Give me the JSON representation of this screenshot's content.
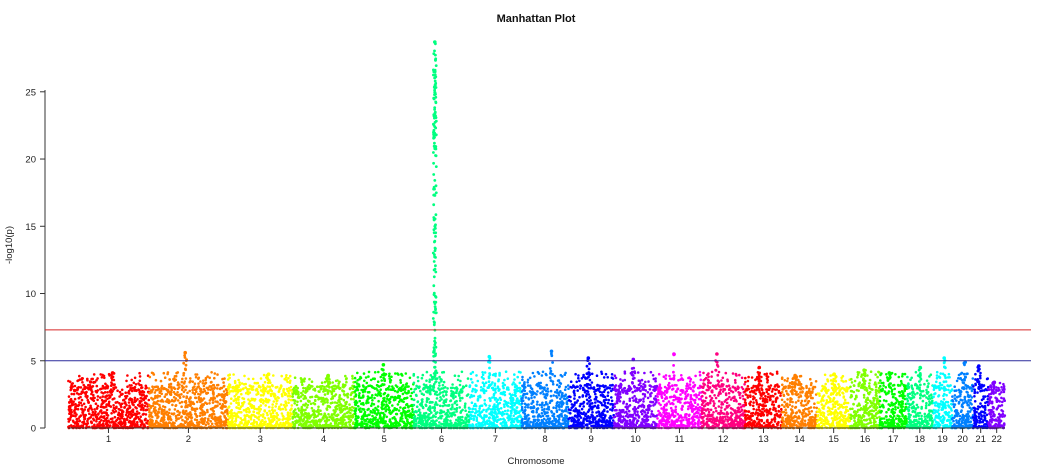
{
  "chart_data": {
    "type": "scatter",
    "title": "Manhattan Plot",
    "xlabel": "Chromosome",
    "ylabel": "-log10(p)",
    "ylim": [
      0,
      29
    ],
    "y_ticks": [
      0,
      5,
      10,
      15,
      20,
      25
    ],
    "grid": false,
    "legend": "none",
    "thresholds": [
      {
        "value": 7.3,
        "color": "#d62728"
      },
      {
        "value": 5.0,
        "color": "#2c2c9c"
      }
    ],
    "chromosomes": [
      {
        "label": "1",
        "color": "#ff0000",
        "peak": 4.1
      },
      {
        "label": "2",
        "color": "#ff7f00",
        "peak": 5.6
      },
      {
        "label": "3",
        "color": "#ffff00",
        "peak": 4.0
      },
      {
        "label": "4",
        "color": "#80ff00",
        "peak": 3.9
      },
      {
        "label": "5",
        "color": "#00ff00",
        "peak": 4.7
      },
      {
        "label": "6",
        "color": "#00ff80",
        "peak": 28.7
      },
      {
        "label": "7",
        "color": "#00ffff",
        "peak": 5.3
      },
      {
        "label": "8",
        "color": "#0080ff",
        "peak": 5.7
      },
      {
        "label": "9",
        "color": "#0000ff",
        "peak": 5.2
      },
      {
        "label": "10",
        "color": "#8000ff",
        "peak": 5.1
      },
      {
        "label": "11",
        "color": "#ff00ff",
        "peak": 5.5
      },
      {
        "label": "12",
        "color": "#ff0080",
        "peak": 5.5
      },
      {
        "label": "13",
        "color": "#ff0000",
        "peak": 4.5
      },
      {
        "label": "14",
        "color": "#ff7f00",
        "peak": 3.9
      },
      {
        "label": "15",
        "color": "#ffff00",
        "peak": 4.0
      },
      {
        "label": "16",
        "color": "#80ff00",
        "peak": 4.3
      },
      {
        "label": "17",
        "color": "#00ff00",
        "peak": 4.1
      },
      {
        "label": "18",
        "color": "#00ff80",
        "peak": 4.5
      },
      {
        "label": "19",
        "color": "#00ffff",
        "peak": 5.2
      },
      {
        "label": "20",
        "color": "#0080ff",
        "peak": 4.9
      },
      {
        "label": "21",
        "color": "#0000ff",
        "peak": 4.6
      },
      {
        "label": "22",
        "color": "#8000ff",
        "peak": 3.4
      }
    ]
  }
}
